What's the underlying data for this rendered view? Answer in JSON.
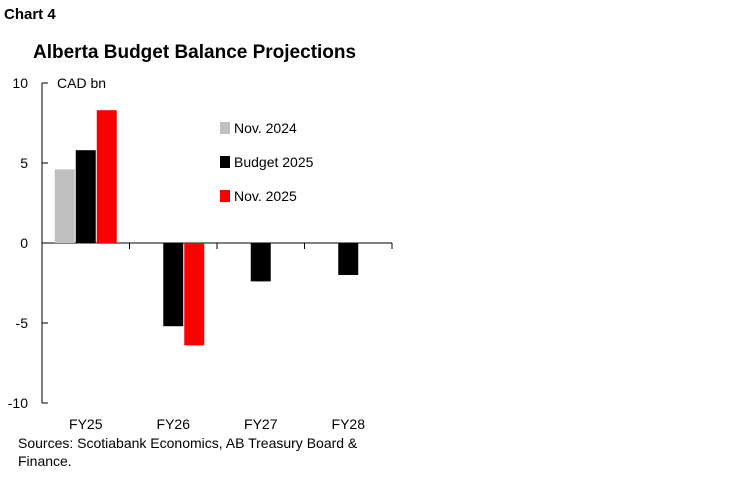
{
  "header": {
    "chart_number": "Chart 4",
    "title": "Alberta Budget Balance Projections"
  },
  "source": "Sources: Scotiabank Economics, AB Treasury Board & Finance.",
  "chart_data": {
    "type": "bar",
    "title": "Alberta Budget Balance Projections",
    "xlabel": "",
    "ylabel": "CAD bn",
    "ylim": [
      -10,
      10
    ],
    "yticks": [
      10,
      5,
      0,
      -5,
      -10
    ],
    "categories": [
      "FY25",
      "FY26",
      "FY27",
      "FY28"
    ],
    "series": [
      {
        "name": "Nov. 2024",
        "color": "#bfbfbf",
        "values": [
          4.6,
          null,
          null,
          null
        ]
      },
      {
        "name": "Budget 2025",
        "color": "#000000",
        "values": [
          5.8,
          -5.2,
          -2.4,
          -2.0
        ]
      },
      {
        "name": "Nov. 2025",
        "color": "#ff0000",
        "values": [
          8.3,
          -6.4,
          null,
          null
        ]
      }
    ],
    "legend_position": "top-right of plot area",
    "grid": false
  }
}
